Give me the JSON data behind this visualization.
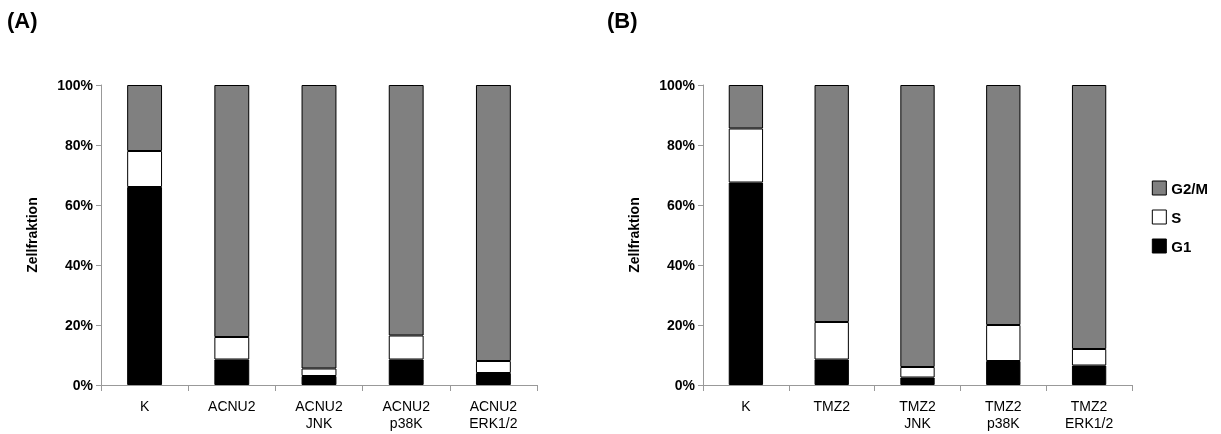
{
  "chart_data": [
    {
      "type": "bar",
      "title": "(A)",
      "ylabel": "Zellfraktion",
      "stacked": true,
      "legend": false,
      "categories": [
        "K",
        "ACNU2",
        "ACNU2\nJNK",
        "ACNU2\np38K",
        "ACNU2\nERK1/2"
      ],
      "ylim": [
        0,
        100
      ],
      "yticks": [
        {
          "value": 0,
          "label": "0%"
        },
        {
          "value": 20,
          "label": "20%"
        },
        {
          "value": 40,
          "label": "40%"
        },
        {
          "value": 60,
          "label": "60%"
        },
        {
          "value": 80,
          "label": "80%"
        },
        {
          "value": 100,
          "label": "100%"
        }
      ],
      "series": [
        {
          "color": "#000000",
          "values": [
            66,
            8.5,
            3,
            8.5,
            4
          ]
        },
        {
          "color": "#ffffff",
          "values": [
            12,
            7.5,
            2.5,
            8,
            4
          ]
        },
        {
          "color": "#808080",
          "values": [
            22,
            84,
            94.5,
            83.5,
            92
          ]
        }
      ]
    },
    {
      "type": "bar",
      "title": "(B)",
      "ylabel": "Zellfraktion",
      "stacked": true,
      "legend": "right",
      "categories": [
        "K",
        "TMZ2",
        "TMZ2\nJNK",
        "TMZ2\np38K",
        "TMZ2\nERK1/2"
      ],
      "ylim": [
        0,
        100
      ],
      "yticks": [
        {
          "value": 0,
          "label": "0%"
        },
        {
          "value": 20,
          "label": "20%"
        },
        {
          "value": 40,
          "label": "40%"
        },
        {
          "value": 60,
          "label": "60%"
        },
        {
          "value": 80,
          "label": "80%"
        },
        {
          "value": 100,
          "label": "100%"
        }
      ],
      "series": [
        {
          "name": "G1",
          "color": "#000000",
          "values": [
            67.5,
            8.5,
            2.5,
            8,
            6.5
          ]
        },
        {
          "name": "S",
          "color": "#ffffff",
          "values": [
            18,
            12.5,
            3.5,
            12,
            5.5
          ]
        },
        {
          "name": "G2/M",
          "color": "#808080",
          "values": [
            14.5,
            79,
            94,
            80,
            88
          ]
        }
      ]
    }
  ]
}
